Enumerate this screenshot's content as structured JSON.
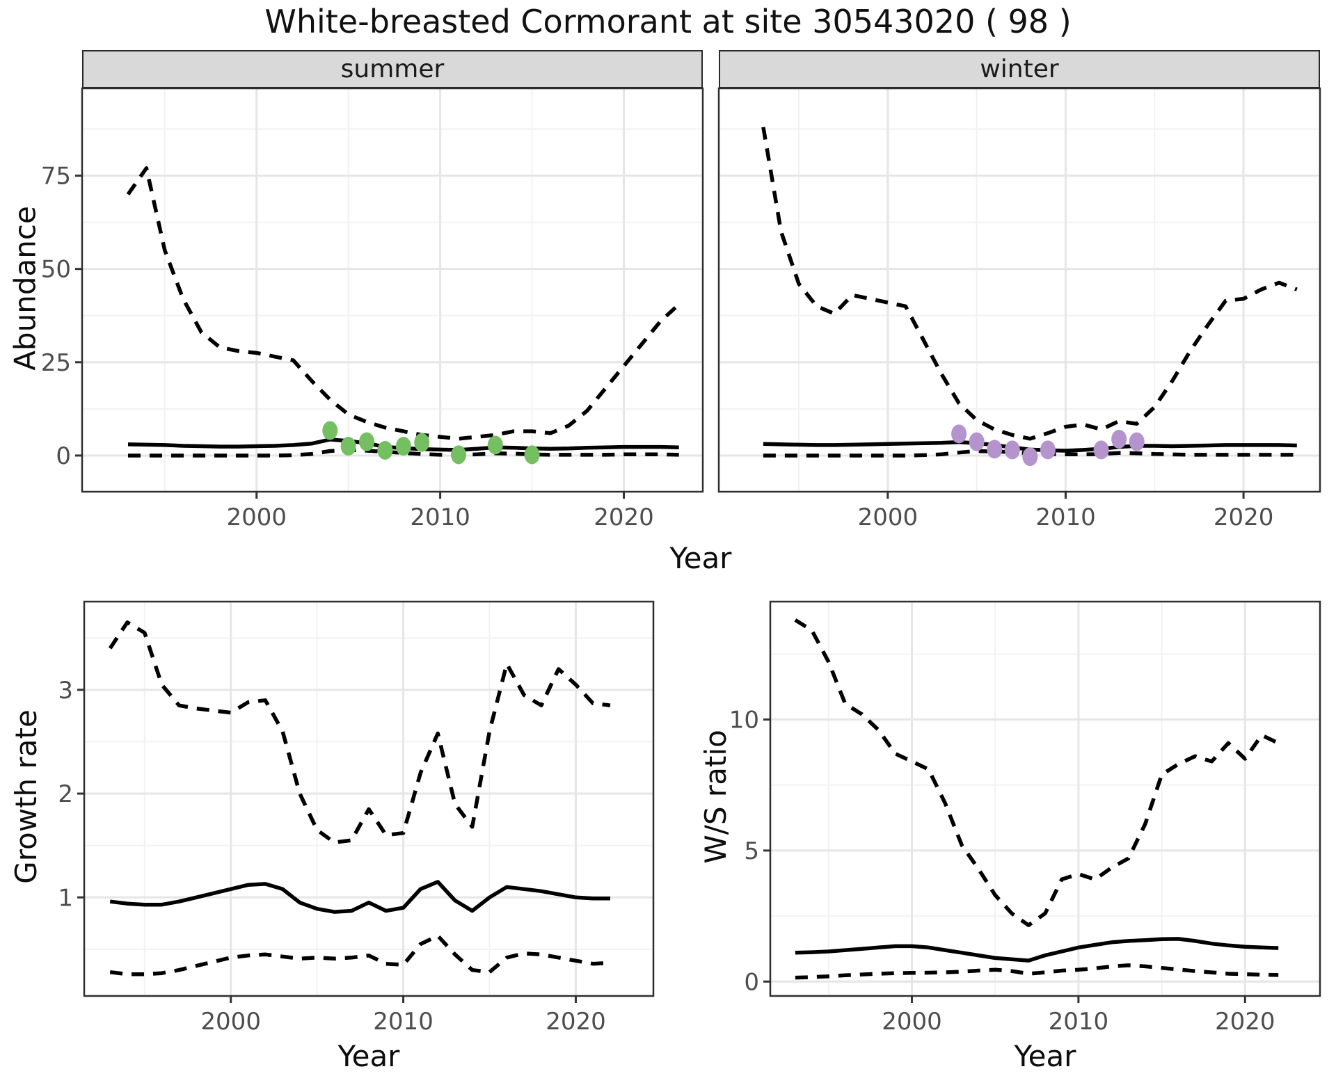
{
  "title": "White-breasted Cormorant at site 30543020 ( 98 )",
  "facets": {
    "summer": "summer",
    "winter": "winter"
  },
  "axes": {
    "abundance_label": "Abundance",
    "year_label": "Year",
    "growth_label": "Growth rate",
    "ws_label": "W/S ratio"
  },
  "colors": {
    "summer_points": "#74BF62",
    "winter_points": "#B593CD",
    "line": "#000000",
    "strip_bg": "#D9D9D9",
    "grid_major": "#E6E6E6",
    "grid_minor": "#F2F2F2",
    "panel_border": "#2F2F2F",
    "tick_text": "#4D4D4D"
  },
  "chart_data": [
    {
      "id": "summer",
      "type": "line",
      "facet": "summer",
      "xlabel": "Year",
      "ylabel": "Abundance",
      "xlim": [
        1990.5,
        2024.3
      ],
      "ylim": [
        -9.7,
        98.4
      ],
      "xticks": [
        2000,
        2010,
        2020
      ],
      "xminor": [
        1995,
        2005,
        2015
      ],
      "yticks": [
        0,
        25,
        50,
        75
      ],
      "yminor": [
        12.5,
        37.5,
        62.5,
        87.5
      ],
      "x": [
        1993,
        1994,
        1995,
        1996,
        1997,
        1998,
        1999,
        2000,
        2001,
        2002,
        2003,
        2004,
        2005,
        2006,
        2007,
        2008,
        2009,
        2010,
        2011,
        2012,
        2013,
        2014,
        2015,
        2016,
        2017,
        2018,
        2019,
        2020,
        2021,
        2022,
        2023
      ],
      "series": [
        {
          "name": "upper_ci",
          "style": "dashed",
          "values": [
            70,
            77,
            55,
            42,
            33,
            29,
            28,
            27.5,
            26.5,
            25.5,
            20,
            15,
            11,
            9,
            7.5,
            6.5,
            5.5,
            5,
            4.5,
            5,
            5.5,
            6.5,
            6.5,
            6,
            8,
            12,
            18,
            24,
            30,
            36,
            40.5
          ]
        },
        {
          "name": "median",
          "style": "solid",
          "values": [
            3.0,
            2.9,
            2.8,
            2.6,
            2.5,
            2.4,
            2.4,
            2.5,
            2.6,
            2.8,
            3.2,
            4.3,
            3.9,
            3.3,
            2.3,
            2.0,
            1.7,
            1.6,
            1.5,
            1.8,
            2.2,
            2.1,
            1.9,
            1.8,
            1.9,
            2.1,
            2.2,
            2.3,
            2.3,
            2.3,
            2.2
          ]
        },
        {
          "name": "lower_ci",
          "style": "dashed",
          "values": [
            0,
            0,
            0,
            0,
            0,
            0,
            0,
            0,
            0,
            0.1,
            0.4,
            1.2,
            1.5,
            1.3,
            1.0,
            0.7,
            0.4,
            0.2,
            0.2,
            0.3,
            0.6,
            0.5,
            0.3,
            0.2,
            0.2,
            0.2,
            0.2,
            0.3,
            0.3,
            0.3,
            0.2
          ]
        }
      ],
      "points": {
        "name": "observed_counts_summer",
        "color": "#74BF62",
        "data": [
          [
            2004,
            6.7
          ],
          [
            2005,
            2.5
          ],
          [
            2006,
            3.7
          ],
          [
            2007,
            1.4
          ],
          [
            2008,
            2.5
          ],
          [
            2009,
            3.5
          ],
          [
            2011,
            0.2
          ],
          [
            2013,
            2.8
          ],
          [
            2015,
            0.2
          ]
        ]
      }
    },
    {
      "id": "winter",
      "type": "line",
      "facet": "winter",
      "xlabel": "Year",
      "ylabel": "Abundance",
      "xlim": [
        1990.5,
        2024.3
      ],
      "ylim": [
        -9.7,
        98.4
      ],
      "xticks": [
        2000,
        2010,
        2020
      ],
      "xminor": [
        1995,
        2005,
        2015
      ],
      "yticks": [
        0,
        25,
        50,
        75
      ],
      "yminor": [
        12.5,
        37.5,
        62.5,
        87.5
      ],
      "x": [
        1993,
        1994,
        1995,
        1996,
        1997,
        1998,
        1999,
        2000,
        2001,
        2002,
        2003,
        2004,
        2005,
        2006,
        2007,
        2008,
        2009,
        2010,
        2011,
        2012,
        2013,
        2014,
        2015,
        2016,
        2017,
        2018,
        2019,
        2020,
        2021,
        2022,
        2023
      ],
      "series": [
        {
          "name": "upper_ci",
          "style": "dashed",
          "values": [
            88,
            60,
            46,
            40,
            38,
            43,
            42,
            41,
            40,
            31,
            22,
            14,
            9.5,
            7,
            5.5,
            4.5,
            6,
            7.7,
            8.3,
            7,
            9.2,
            8.5,
            13,
            20,
            28,
            35,
            41.5,
            42,
            44.5,
            46.3,
            44.5
          ]
        },
        {
          "name": "median",
          "style": "solid",
          "values": [
            3.1,
            3.0,
            2.9,
            2.8,
            2.8,
            2.9,
            3.0,
            3.1,
            3.2,
            3.3,
            3.4,
            3.6,
            3.3,
            2.8,
            2.2,
            1.6,
            1.4,
            1.3,
            1.5,
            1.8,
            2.3,
            2.6,
            2.6,
            2.5,
            2.6,
            2.7,
            2.8,
            2.8,
            2.8,
            2.8,
            2.7
          ]
        },
        {
          "name": "lower_ci",
          "style": "dashed",
          "values": [
            0,
            0,
            0,
            0,
            0,
            0,
            0,
            0,
            0,
            0.1,
            0.3,
            0.8,
            1.2,
            1.1,
            0.9,
            0.6,
            0.4,
            0.3,
            0.3,
            0.4,
            0.7,
            0.6,
            0.4,
            0.3,
            0.2,
            0.2,
            0.2,
            0.2,
            0.2,
            0.2,
            0.2
          ]
        }
      ],
      "points": {
        "name": "observed_counts_winter",
        "color": "#B593CD",
        "data": [
          [
            2004,
            5.8
          ],
          [
            2005,
            3.7
          ],
          [
            2006,
            1.7
          ],
          [
            2007,
            1.5
          ],
          [
            2008,
            -0.3
          ],
          [
            2009,
            1.5
          ],
          [
            2012,
            1.5
          ],
          [
            2013,
            4.4
          ],
          [
            2014,
            3.7
          ]
        ]
      }
    },
    {
      "id": "growth_rate",
      "type": "line",
      "facet": null,
      "xlabel": "Year",
      "ylabel": "Growth rate",
      "xlim": [
        1991.5,
        2024.5
      ],
      "ylim": [
        0.05,
        3.85
      ],
      "xticks": [
        2000,
        2010,
        2020
      ],
      "xminor": [
        1995,
        2005,
        2015
      ],
      "yticks": [
        1,
        2,
        3
      ],
      "yminor": [
        0.5,
        1.5,
        2.5,
        3.5
      ],
      "x": [
        1993,
        1994,
        1995,
        1996,
        1997,
        1998,
        1999,
        2000,
        2001,
        2002,
        2003,
        2004,
        2005,
        2006,
        2007,
        2008,
        2009,
        2010,
        2011,
        2012,
        2013,
        2014,
        2015,
        2016,
        2017,
        2018,
        2019,
        2020,
        2021,
        2022
      ],
      "series": [
        {
          "name": "upper_ci",
          "style": "dashed",
          "values": [
            3.4,
            3.65,
            3.55,
            3.05,
            2.85,
            2.82,
            2.8,
            2.78,
            2.88,
            2.9,
            2.6,
            2.0,
            1.65,
            1.53,
            1.55,
            1.85,
            1.6,
            1.62,
            2.2,
            2.58,
            1.9,
            1.68,
            2.6,
            3.25,
            2.95,
            2.85,
            3.2,
            3.05,
            2.87,
            2.85
          ]
        },
        {
          "name": "median",
          "style": "solid",
          "values": [
            0.96,
            0.94,
            0.93,
            0.93,
            0.96,
            1.0,
            1.04,
            1.08,
            1.12,
            1.13,
            1.08,
            0.95,
            0.89,
            0.86,
            0.87,
            0.95,
            0.87,
            0.9,
            1.08,
            1.15,
            0.97,
            0.87,
            1.0,
            1.1,
            1.08,
            1.06,
            1.03,
            1.0,
            0.99,
            0.99
          ]
        },
        {
          "name": "lower_ci",
          "style": "dashed",
          "values": [
            0.28,
            0.26,
            0.26,
            0.27,
            0.3,
            0.34,
            0.38,
            0.42,
            0.44,
            0.45,
            0.43,
            0.41,
            0.42,
            0.41,
            0.42,
            0.44,
            0.36,
            0.35,
            0.55,
            0.63,
            0.45,
            0.3,
            0.28,
            0.42,
            0.46,
            0.45,
            0.42,
            0.39,
            0.36,
            0.37
          ]
        }
      ],
      "points": null
    },
    {
      "id": "ws_ratio",
      "type": "line",
      "facet": null,
      "xlabel": "Year",
      "ylabel": "W/S ratio",
      "xlim": [
        1991.5,
        2024.5
      ],
      "ylim": [
        -0.55,
        14.5
      ],
      "xticks": [
        2000,
        2010,
        2020
      ],
      "xminor": [
        1995,
        2005,
        2015
      ],
      "yticks": [
        0,
        5,
        10
      ],
      "yminor": [
        2.5,
        7.5,
        12.5
      ],
      "x": [
        1993,
        1994,
        1995,
        1996,
        1997,
        1998,
        1999,
        2000,
        2001,
        2002,
        2003,
        2004,
        2005,
        2006,
        2007,
        2008,
        2009,
        2010,
        2011,
        2012,
        2013,
        2014,
        2015,
        2016,
        2017,
        2018,
        2019,
        2020,
        2021,
        2022
      ],
      "series": [
        {
          "name": "upper_ci",
          "style": "dashed",
          "values": [
            13.8,
            13.4,
            12.2,
            10.6,
            10.2,
            9.6,
            8.7,
            8.4,
            8.1,
            6.8,
            5.2,
            4.3,
            3.3,
            2.6,
            2.15,
            2.6,
            3.9,
            4.1,
            3.9,
            4.35,
            4.7,
            6.0,
            7.9,
            8.3,
            8.6,
            8.4,
            9.1,
            8.5,
            9.4,
            9.1
          ]
        },
        {
          "name": "median",
          "style": "solid",
          "values": [
            1.1,
            1.12,
            1.15,
            1.2,
            1.25,
            1.3,
            1.35,
            1.35,
            1.3,
            1.2,
            1.1,
            1.0,
            0.9,
            0.85,
            0.8,
            1.0,
            1.15,
            1.3,
            1.4,
            1.5,
            1.55,
            1.58,
            1.62,
            1.63,
            1.55,
            1.45,
            1.38,
            1.33,
            1.3,
            1.28
          ]
        },
        {
          "name": "lower_ci",
          "style": "dashed",
          "values": [
            0.15,
            0.17,
            0.2,
            0.24,
            0.27,
            0.3,
            0.32,
            0.33,
            0.34,
            0.35,
            0.38,
            0.42,
            0.45,
            0.4,
            0.3,
            0.35,
            0.42,
            0.45,
            0.5,
            0.58,
            0.62,
            0.58,
            0.52,
            0.46,
            0.4,
            0.35,
            0.3,
            0.28,
            0.26,
            0.25
          ]
        }
      ],
      "points": null
    }
  ]
}
